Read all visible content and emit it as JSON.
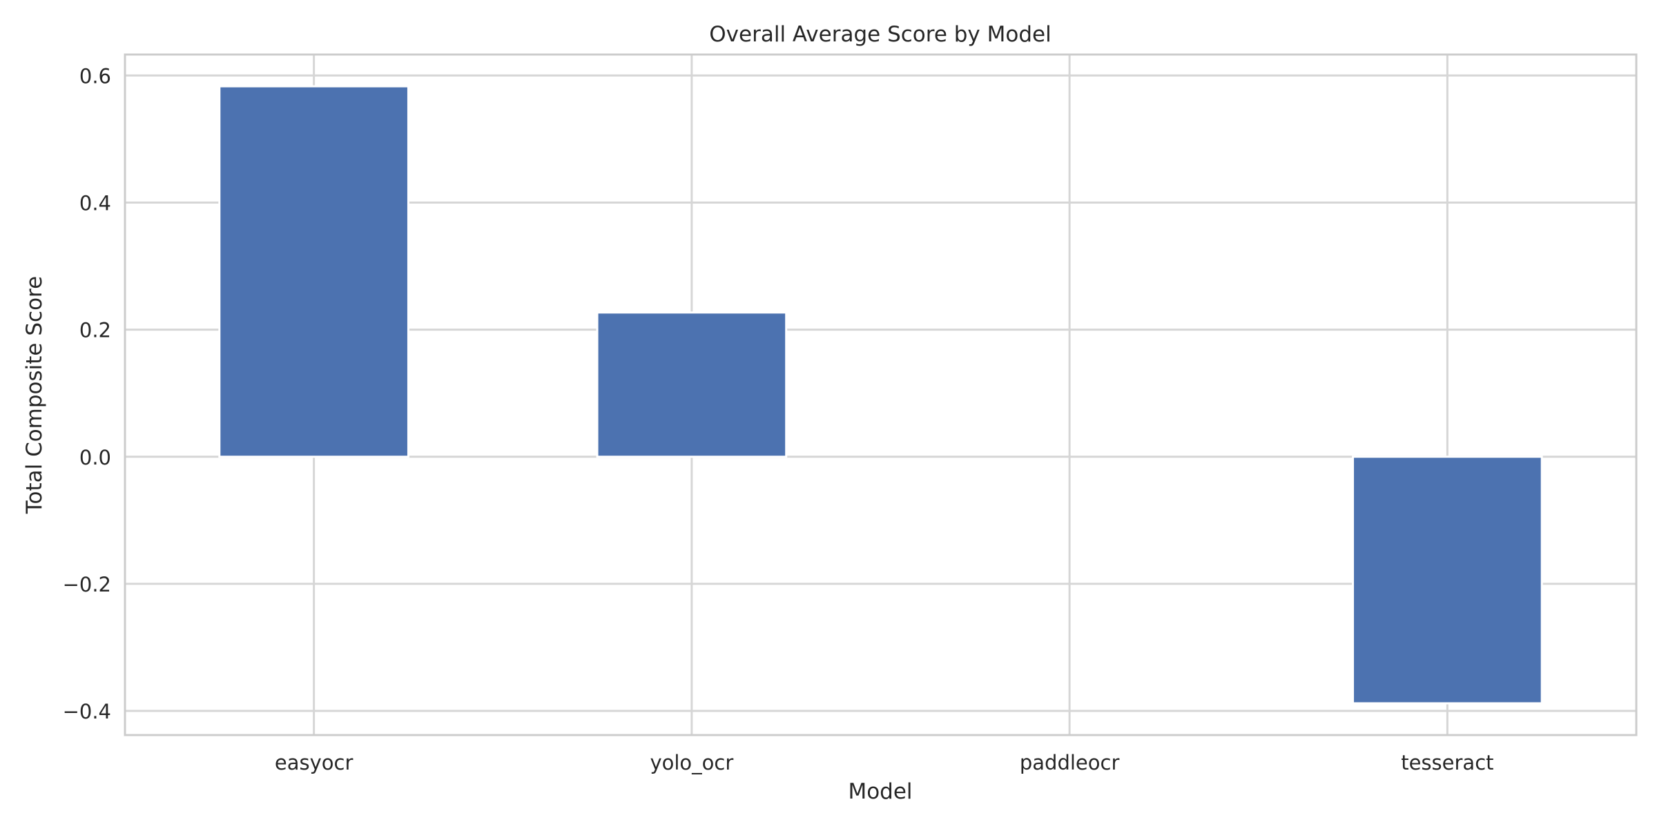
{
  "chart_data": {
    "type": "bar",
    "title": "Overall Average Score by Model",
    "xlabel": "Model",
    "ylabel": "Total Composite Score",
    "categories": [
      "easyocr",
      "yolo_ocr",
      "paddleocr",
      "tesseract"
    ],
    "values": [
      0.583,
      0.227,
      0.0,
      -0.388
    ],
    "ylim": [
      -0.438,
      0.633
    ],
    "yticks": [
      -0.4,
      -0.2,
      0.0,
      0.2,
      0.4,
      0.6
    ],
    "ytick_labels": [
      "−0.4",
      "−0.2",
      "0.0",
      "0.2",
      "0.4",
      "0.6"
    ],
    "grid": true,
    "legend": "none",
    "colors": {
      "bar": "#4c72b0",
      "grid": "#d6d6d6",
      "spine": "#cccccc",
      "text": "#262626"
    }
  }
}
